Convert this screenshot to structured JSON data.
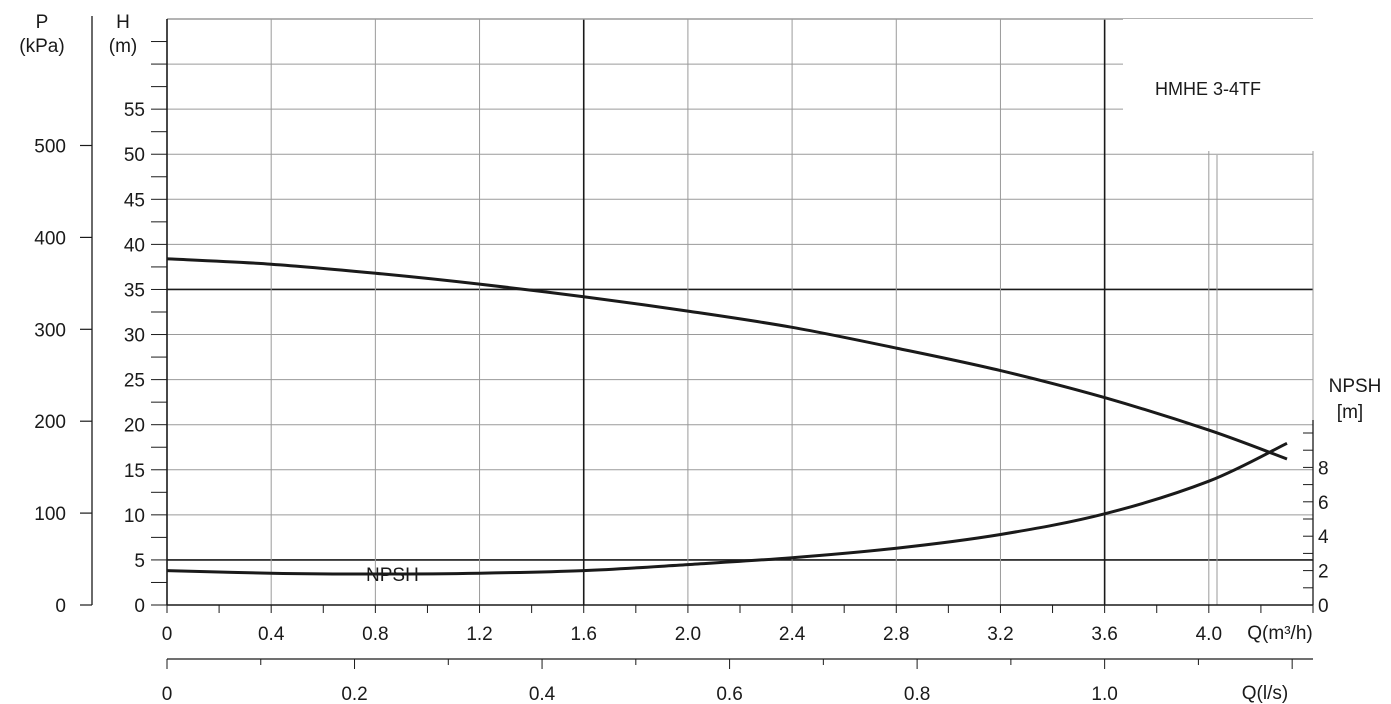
{
  "chart_data": {
    "type": "line",
    "title": "HMHE 3-4TF",
    "x": {
      "label": "Q(m³/h)",
      "ticks": [
        0,
        0.4,
        0.8,
        1.2,
        1.6,
        2.0,
        2.4,
        2.8,
        3.2,
        3.6,
        4.0
      ],
      "tick_labels": [
        "0",
        "0.4",
        "0.8",
        "1.2",
        "1.6",
        "2.0",
        "2.4",
        "2.8",
        "3.2",
        "3.6",
        "4.0"
      ],
      "range": [
        0,
        4.4
      ]
    },
    "x2": {
      "label": "Q(l/s)",
      "ticks": [
        0,
        0.2,
        0.4,
        0.6,
        0.8,
        1.0
      ],
      "tick_labels": [
        "0",
        "0.2",
        "0.4",
        "0.6",
        "0.8",
        "1.0"
      ]
    },
    "y_head": {
      "label_top": "H",
      "label_unit": "(m)",
      "ticks": [
        0,
        5,
        10,
        15,
        20,
        25,
        30,
        35,
        40,
        45,
        50,
        55
      ],
      "tick_labels": [
        "0",
        "5",
        "10",
        "15",
        "20",
        "25",
        "30",
        "35",
        "40",
        "45",
        "50",
        "55"
      ],
      "range": [
        0,
        65
      ]
    },
    "y_pressure": {
      "label_top": "P",
      "label_unit": "(kPa)",
      "ticks": [
        0,
        100,
        200,
        300,
        400,
        500
      ],
      "tick_labels": [
        "0",
        "100",
        "200",
        "300",
        "400",
        "500"
      ]
    },
    "y_npsh": {
      "label_top": "NPSH",
      "label_unit": "[m]",
      "ticks": [
        0,
        2,
        4,
        6,
        8
      ],
      "tick_labels": [
        "0",
        "2",
        "4",
        "6",
        "8"
      ]
    },
    "series": [
      {
        "name": "",
        "axis": "head",
        "x": [
          0,
          0.4,
          0.8,
          1.2,
          1.6,
          2.0,
          2.4,
          2.8,
          3.2,
          3.6,
          4.0,
          4.3
        ],
        "y": [
          38.4,
          37.8,
          36.8,
          35.6,
          34.2,
          32.6,
          30.8,
          28.5,
          26.0,
          23.0,
          19.4,
          16.2
        ]
      },
      {
        "name": "NPSH",
        "axis": "npsh",
        "x": [
          0,
          0.4,
          0.8,
          1.2,
          1.6,
          2.0,
          2.4,
          2.8,
          3.2,
          3.6,
          4.0,
          4.3
        ],
        "y": [
          2.0,
          1.85,
          1.8,
          1.85,
          2.0,
          2.35,
          2.75,
          3.3,
          4.1,
          5.3,
          7.2,
          9.4
        ]
      }
    ],
    "annotations": [
      {
        "text": "NPSH"
      }
    ],
    "grid": true,
    "colors": {
      "curve": "#1a1a1a",
      "grid_minor": "#9a9a9a",
      "grid_major": "#1a1a1a"
    }
  }
}
